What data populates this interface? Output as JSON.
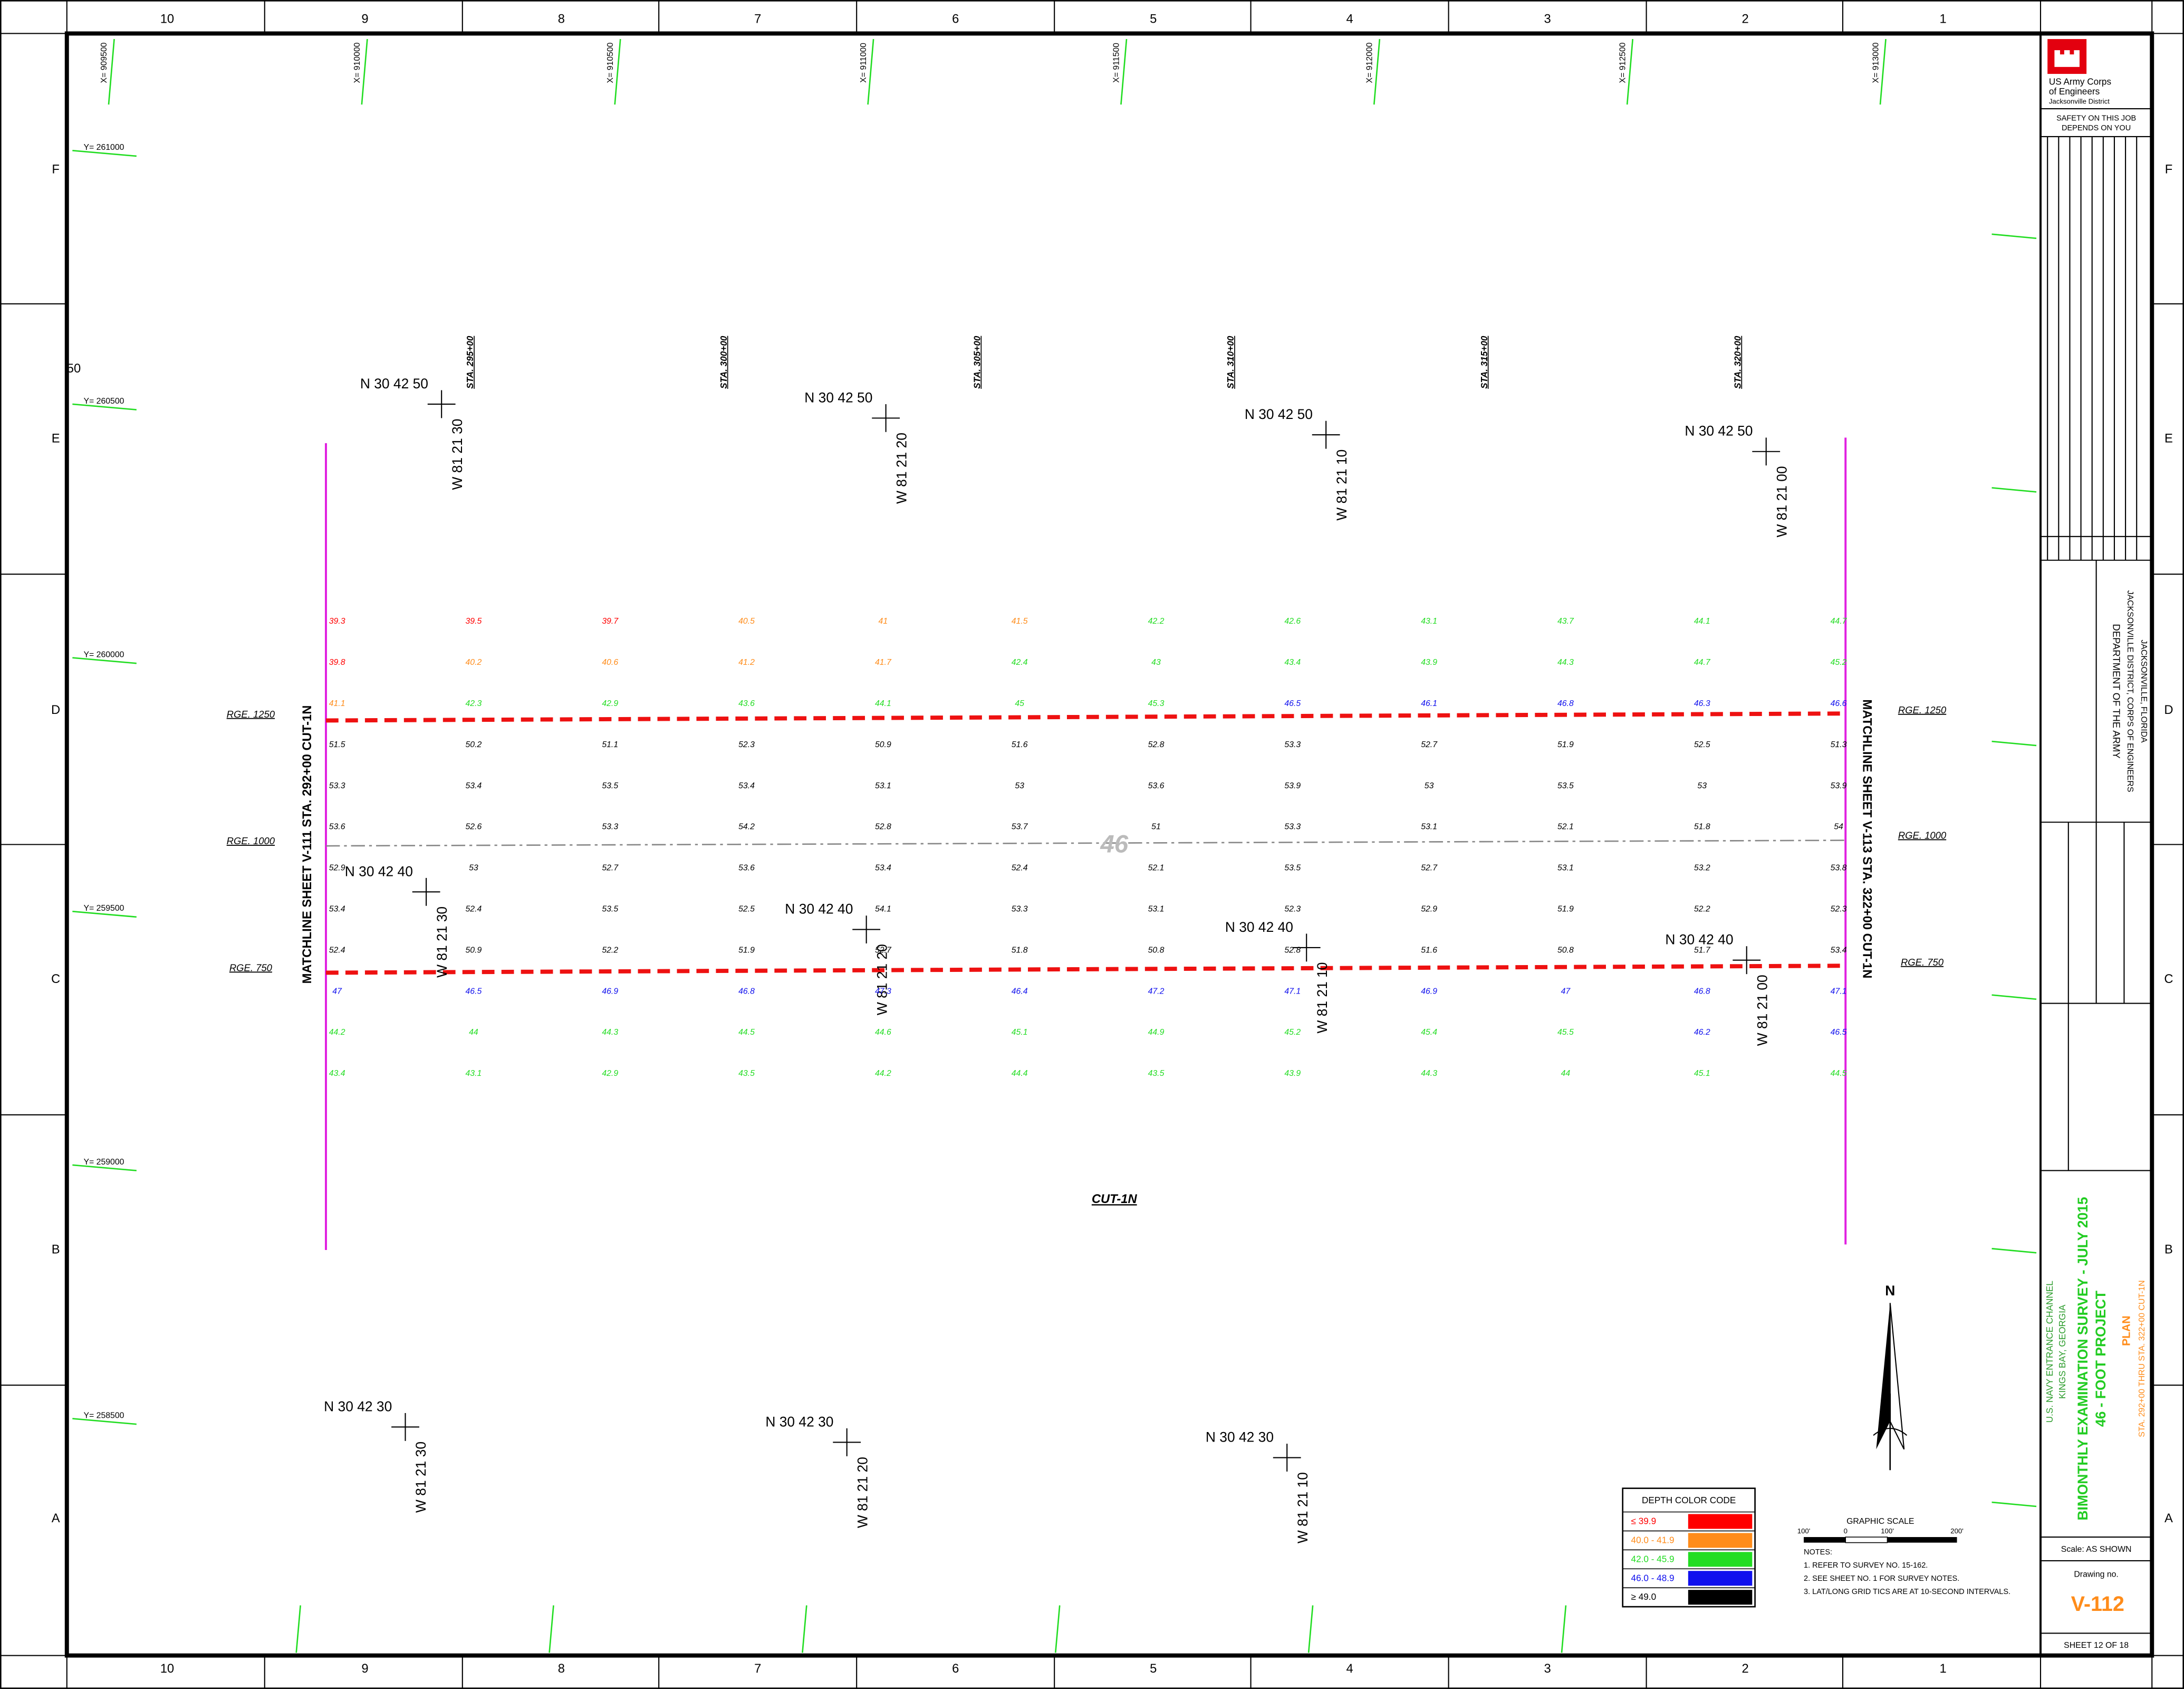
{
  "grid": {
    "columns": [
      "10",
      "9",
      "8",
      "7",
      "6",
      "5",
      "4",
      "3",
      "2",
      "1"
    ],
    "rows": [
      "F",
      "E",
      "D",
      "C",
      "B",
      "A"
    ],
    "eastings": [
      "X= 909500",
      "X= 910000",
      "X= 910500",
      "X= 911000",
      "X= 911500",
      "X= 912000",
      "X= 912500",
      "X= 913000"
    ],
    "northings": [
      "Y= 261000",
      "Y= 260500",
      "Y= 260000",
      "Y= 259500",
      "Y= 259000",
      "Y= 258500"
    ]
  },
  "misc_label": "50",
  "latlong": [
    {
      "n": "N 30 42 50",
      "w": "W 81 21 30"
    },
    {
      "n": "N 30 42 50",
      "w": "W 81 21 20"
    },
    {
      "n": "N 30 42 50",
      "w": "W 81 21 10"
    },
    {
      "n": "N 30 42 50",
      "w": "W 81 21 00"
    },
    {
      "n": "N 30 42 40",
      "w": "W 81 21 30"
    },
    {
      "n": "N 30 42 40",
      "w": "W 81 21 20"
    },
    {
      "n": "N 30 42 40",
      "w": "W 81 21 10"
    },
    {
      "n": "N 30 42 40",
      "w": "W 81 21 00"
    },
    {
      "n": "N 30 42 30",
      "w": "W 81 21 30"
    },
    {
      "n": "N 30 42 30",
      "w": "W 81 21 20"
    },
    {
      "n": "N 30 42 30",
      "w": "W 81 21 10"
    }
  ],
  "stations": [
    "STA. 295+00",
    "STA. 300+00",
    "STA. 305+00",
    "STA. 310+00",
    "STA. 315+00",
    "STA. 320+00"
  ],
  "ranges": [
    "RGE. 1250",
    "RGE. 1000",
    "RGE. 750"
  ],
  "matchlines": {
    "left": "MATCHLINE SHEET V-111 STA. 292+00 CUT-1N",
    "right": "MATCHLINE SHEET V-113 STA. 322+00 CUT-1N"
  },
  "cut_label": "CUT-1N",
  "project_depth": "46",
  "soundings": [
    [
      39.3,
      39.8,
      41.1,
      51.5,
      53.3,
      53.6,
      52.9,
      53.4,
      52.4,
      47.0,
      44.2,
      43.4
    ],
    [
      39.5,
      40.2,
      42.3,
      50.2,
      53.4,
      52.6,
      53.0,
      52.4,
      50.9,
      46.5,
      44.0,
      43.1
    ],
    [
      39.7,
      40.6,
      42.9,
      51.1,
      53.5,
      53.3,
      52.7,
      53.5,
      52.2,
      46.9,
      44.3,
      42.9
    ],
    [
      40.5,
      41.2,
      43.6,
      52.3,
      53.4,
      54.2,
      53.6,
      52.5,
      51.9,
      46.8,
      44.5,
      43.5
    ],
    [
      41.0,
      41.7,
      44.1,
      50.9,
      53.1,
      52.8,
      53.4,
      54.1,
      52.7,
      47.3,
      44.6,
      44.2
    ],
    [
      41.5,
      42.4,
      45.0,
      51.6,
      53.0,
      53.7,
      52.4,
      53.3,
      51.8,
      46.4,
      45.1,
      44.4
    ],
    [
      42.2,
      43.0,
      45.3,
      52.8,
      53.6,
      51.0,
      52.1,
      53.1,
      50.8,
      47.2,
      44.9,
      43.5
    ],
    [
      42.6,
      43.4,
      46.5,
      53.3,
      53.9,
      53.3,
      53.5,
      52.3,
      52.8,
      47.1,
      45.2,
      43.9
    ],
    [
      43.1,
      43.9,
      46.1,
      52.7,
      53.0,
      53.1,
      52.7,
      52.9,
      51.6,
      46.9,
      45.4,
      44.3
    ],
    [
      43.7,
      44.3,
      46.8,
      51.9,
      53.5,
      52.1,
      53.1,
      51.9,
      50.8,
      47.0,
      45.5,
      44.0
    ],
    [
      44.1,
      44.7,
      46.3,
      52.5,
      53.0,
      51.8,
      53.2,
      52.2,
      51.7,
      46.8,
      46.2,
      45.1
    ],
    [
      44.7,
      45.2,
      46.6,
      51.3,
      53.9,
      54.0,
      53.8,
      52.3,
      53.4,
      47.1,
      46.5,
      44.5
    ]
  ],
  "legend": {
    "title": "DEPTH COLOR CODE",
    "items": [
      {
        "label": "≤ 39.9",
        "color": "#ff0000",
        "max": 39.9
      },
      {
        "label": "40.0 - 41.9",
        "color": "#ff8c1a",
        "max": 41.9
      },
      {
        "label": "42.0 - 45.9",
        "color": "#22dd22",
        "max": 45.9
      },
      {
        "label": "46.0 - 48.9",
        "color": "#1010ee",
        "max": 48.9
      },
      {
        "label": "≥ 49.0",
        "color": "#000000",
        "min": 49.0
      }
    ]
  },
  "scale_bar": {
    "title": "GRAPHIC SCALE",
    "labels": [
      "100'",
      "0",
      "100'",
      "200'"
    ]
  },
  "notes": [
    "NOTES:",
    "1. REFER TO SURVEY NO. 15-162.",
    "2. SEE SHEET NO. 1 FOR SURVEY NOTES.",
    "3. LAT/LONG GRID TICS ARE AT 10-SECOND INTERVALS."
  ],
  "north": "N",
  "title_block": {
    "agency": [
      "US Army Corps",
      "of Engineers",
      "Jacksonville District"
    ],
    "safety": [
      "SAFETY ON THIS JOB",
      "DEPENDS ON YOU"
    ],
    "department": [
      "DEPARTMENT OF THE ARMY",
      "JACKSONVILLE DISTRICT, CORPS OF ENGINEERS",
      "JACKSONVILLE, FLORIDA"
    ],
    "location": [
      "U.S. NAVY ENTRANCE CHANNEL",
      "KINGS BAY, GEORGIA"
    ],
    "survey_title": [
      "BIMONTHLY EXAMINATION SURVEY - JULY 2015",
      "46 - FOOT PROJECT"
    ],
    "plan": "PLAN",
    "stations": "STA. 292+00 THRU STA. 322+00 CUT-1N",
    "scale": "Scale:  AS SHOWN",
    "drawing_label": "Drawing no.",
    "drawing_no": "V-112",
    "sheet": "SHEET  12  OF  18"
  }
}
